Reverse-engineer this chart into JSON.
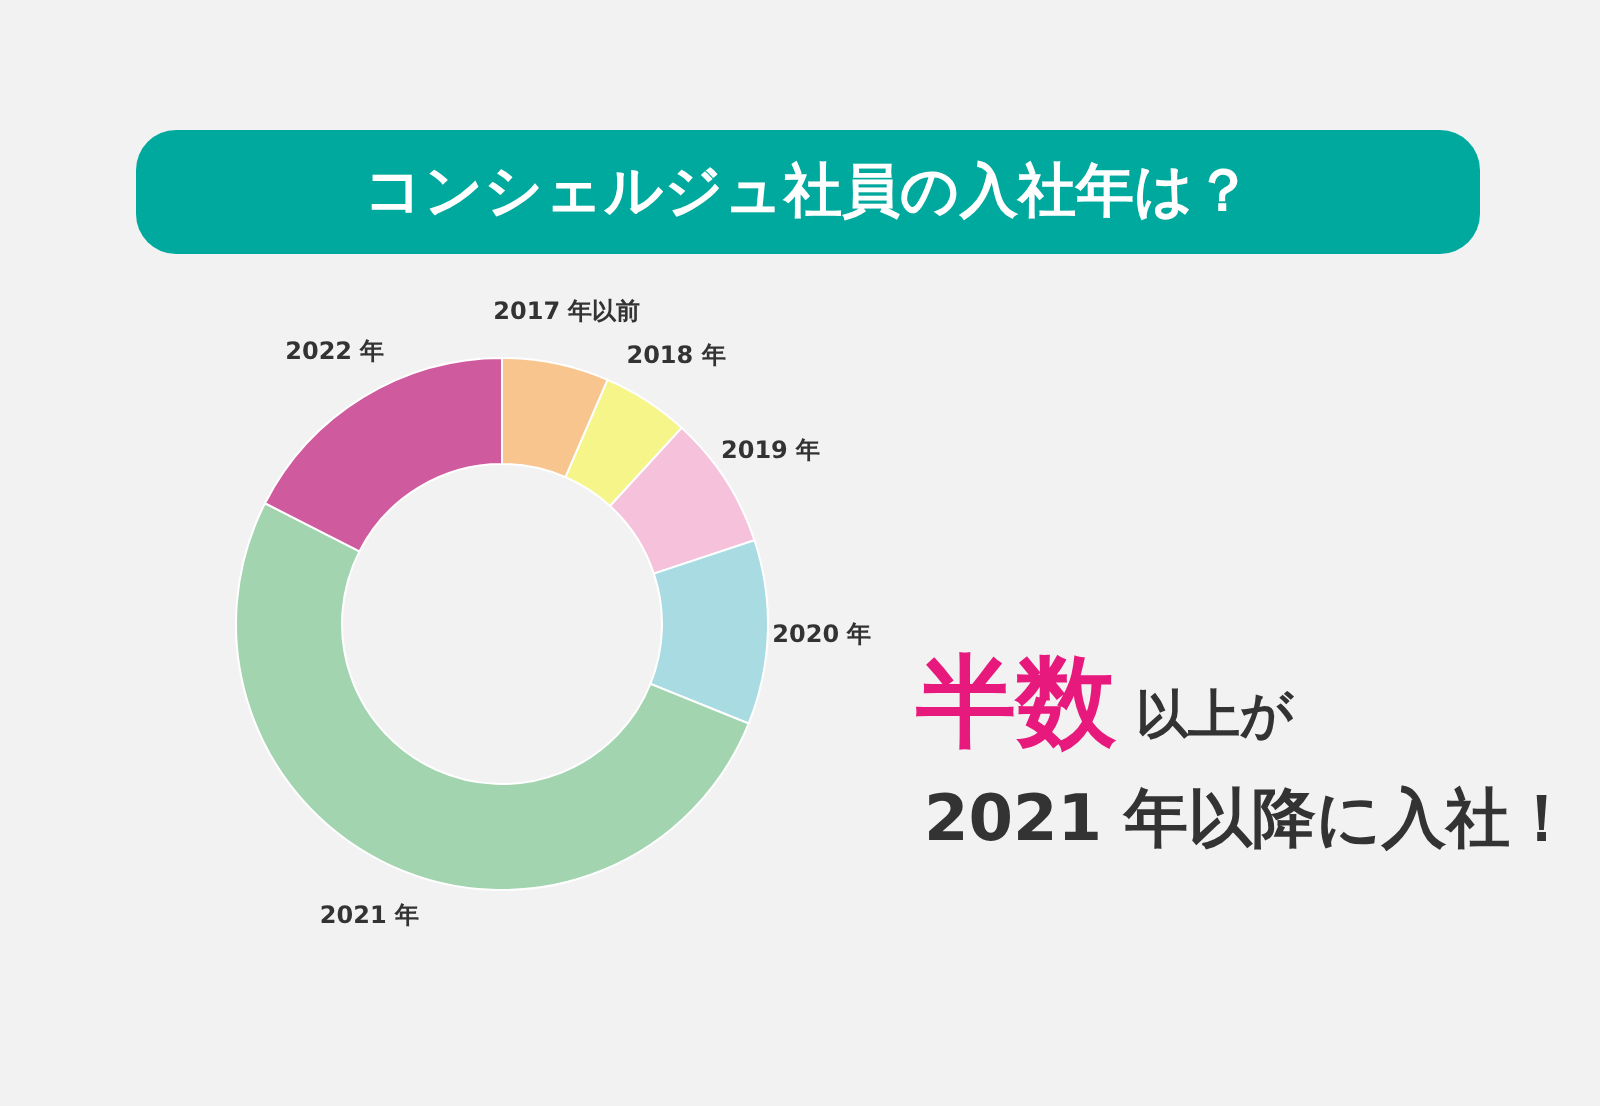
{
  "chart_data": {
    "type": "donut",
    "title": "コンシェルジュ社員の入社年は？",
    "categories": [
      "2017 年以前",
      "2018 年",
      "2019 年",
      "2020 年",
      "2021 年",
      "2022 年"
    ],
    "values": [
      6.5,
      5.3,
      8.1,
      11.2,
      51.4,
      17.5
    ],
    "colors": [
      "#f9c58f",
      "#f6f58a",
      "#f6c1da",
      "#a9dce2",
      "#a3d4b0",
      "#d05a9e"
    ],
    "annotations": [
      "半数",
      "以上が",
      "2021 年以降に入社！"
    ]
  }
}
